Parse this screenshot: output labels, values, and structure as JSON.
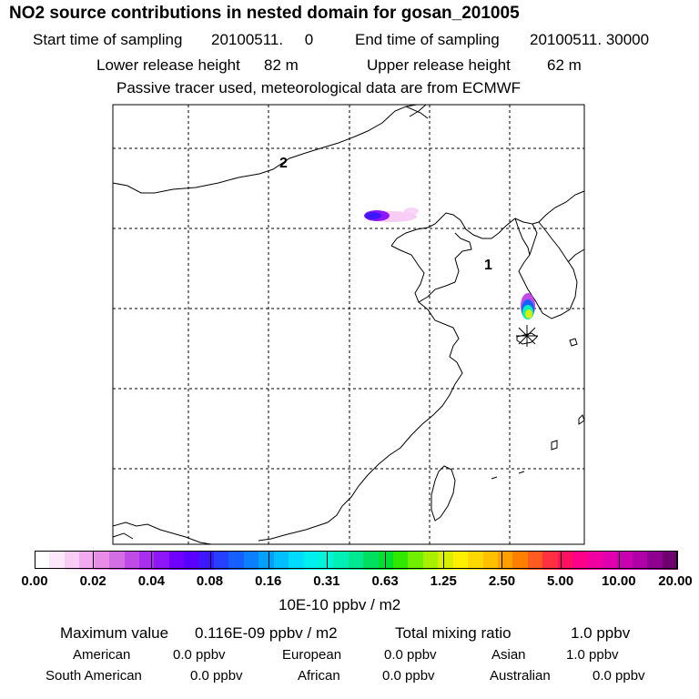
{
  "title": "NO2 source contributions in nested domain for gosan_201005",
  "header": {
    "start_label": "Start time of sampling",
    "start_value": "20100511.     0",
    "end_label": "End time of sampling",
    "end_value": "20100511. 30000",
    "lower_label": "Lower release height",
    "lower_value": "82 m",
    "upper_label": "Upper release height",
    "upper_value": "62 m",
    "note": "Passive tracer used, meteorological data are from ECMWF"
  },
  "map": {
    "region_labels": [
      "2",
      "1"
    ],
    "receptor_marker": "asterisk"
  },
  "colorbar": {
    "unit": "10E-10 ppbv / m2",
    "tick_labels": [
      "0.00",
      "0.02",
      "0.04",
      "0.08",
      "0.16",
      "0.31",
      "0.63",
      "1.25",
      "2.50",
      "5.00",
      "10.00",
      "20.00"
    ],
    "colors": [
      "#ffffff",
      "#fde8fb",
      "#f8ccf5",
      "#f1aaef",
      "#e88ce8",
      "#d46ee4",
      "#c04be6",
      "#a82ef0",
      "#8f16f8",
      "#7000ff",
      "#5a00ff",
      "#3d18ff",
      "#2640ff",
      "#1560ff",
      "#0a80ff",
      "#00a0ff",
      "#00c0ff",
      "#00dcff",
      "#00f0f0",
      "#00f5d8",
      "#00f0b8",
      "#00e890",
      "#00e060",
      "#00e030",
      "#30e800",
      "#70f000",
      "#a8f000",
      "#d8f000",
      "#fff000",
      "#ffd800",
      "#ffc000",
      "#ffa000",
      "#ff8000",
      "#ff5a20",
      "#ff3040",
      "#ff1060",
      "#ff0088",
      "#f000a0",
      "#e000b0",
      "#c800b0",
      "#b000a8",
      "#900090",
      "#700070"
    ]
  },
  "stats": {
    "max_label": "Maximum value",
    "max_value": "0.116E-09 ppbv / m2",
    "total_label": "Total mixing ratio",
    "total_value": "1.0 ppbv",
    "regions": [
      {
        "name": "American",
        "value": "0.0 ppbv"
      },
      {
        "name": "European",
        "value": "0.0 ppbv"
      },
      {
        "name": "Asian",
        "value": "1.0 ppbv"
      },
      {
        "name": "South American",
        "value": "0.0 ppbv"
      },
      {
        "name": "African",
        "value": "0.0 ppbv"
      },
      {
        "name": "Australian",
        "value": "0.0 ppbv"
      }
    ]
  }
}
